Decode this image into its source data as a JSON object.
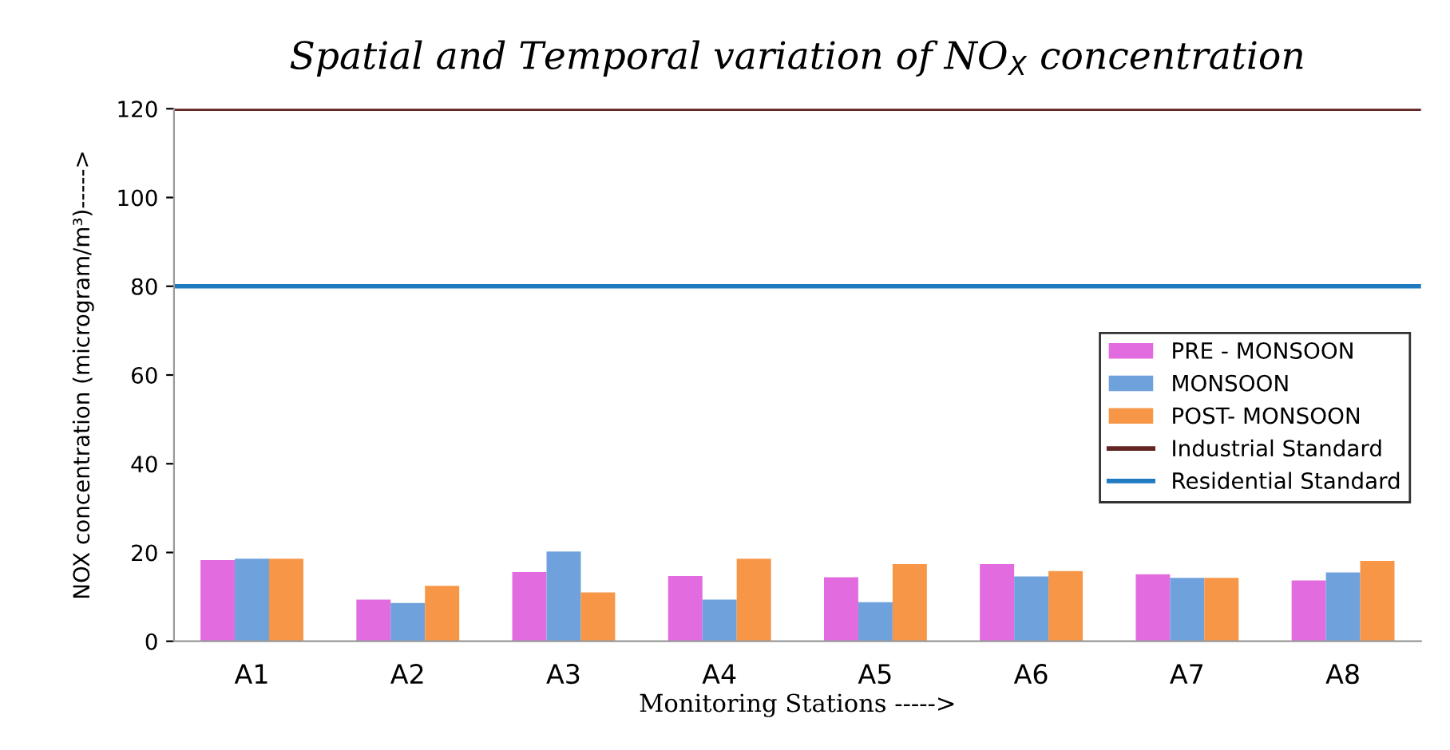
{
  "chart_data": {
    "type": "bar",
    "title": "Spatial and Temporal variation of NO$_{X}$ concentration",
    "xlabel": "Monitoring Stations ----->",
    "ylabel": "NOX concentration (microgram/m³)----->",
    "categories": [
      "A1",
      "A2",
      "A3",
      "A4",
      "A5",
      "A6",
      "A7",
      "A8"
    ],
    "series": [
      {
        "name": "PRE - MONSOON",
        "color": "#e36be0",
        "values": [
          18.3,
          9.4,
          15.6,
          14.7,
          14.4,
          17.4,
          15.1,
          13.7
        ]
      },
      {
        "name": "MONSOON",
        "color": "#6fa1dd",
        "values": [
          18.6,
          8.6,
          20.2,
          9.4,
          8.8,
          14.6,
          14.3,
          15.5
        ]
      },
      {
        "name": "POST- MONSOON",
        "color": "#f79646",
        "values": [
          18.6,
          12.5,
          11.0,
          18.6,
          17.4,
          15.8,
          14.3,
          18.1
        ]
      }
    ],
    "ref_lines": [
      {
        "axis": "y",
        "value": 120,
        "label": "Industrial Standard",
        "color": "#632523"
      },
      {
        "axis": "y",
        "value": 80,
        "label": "Residential Standard",
        "color": "#1f7ac0"
      }
    ],
    "ylim": [
      0,
      120
    ],
    "yticks": [
      0,
      20,
      40,
      60,
      80,
      100,
      120
    ],
    "grid": false,
    "legend": "right"
  }
}
